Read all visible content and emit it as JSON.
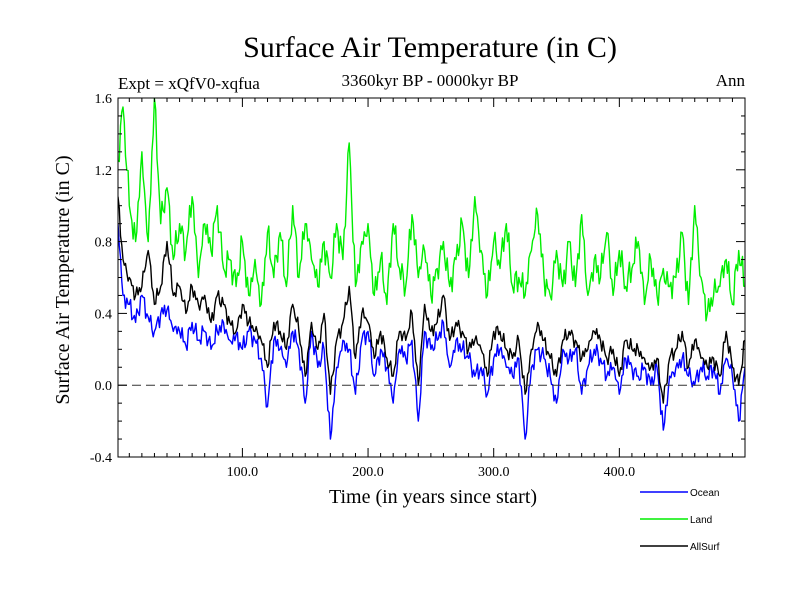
{
  "chart_data": {
    "type": "line",
    "title": "Surface Air Temperature (in C)",
    "subtitle": "3360kyr BP - 0000kyr BP",
    "experiment": "Expt = xQfV0-xqfua",
    "season": "Ann",
    "xlabel": "Time (in years since start)",
    "ylabel": "Surface Air Temperature (in C)",
    "xlim": [
      1,
      500
    ],
    "ylim": [
      -0.4,
      1.6
    ],
    "xticks": [
      100,
      200,
      300,
      400
    ],
    "xtick_labels": [
      "100.0",
      "200.0",
      "300.0",
      "400.0"
    ],
    "yticks": [
      -0.4,
      0.0,
      0.4,
      0.8,
      1.2,
      1.6
    ],
    "ytick_labels": [
      "-0.4",
      "0.0",
      "0.4",
      "0.8",
      "1.2",
      "1.6"
    ],
    "zero_line": 0.0,
    "legend_position": "bottom-right",
    "series": [
      {
        "name": "Ocean",
        "color": "#0000ff",
        "x": [
          1,
          5,
          10,
          15,
          20,
          25,
          30,
          35,
          40,
          45,
          50,
          55,
          60,
          65,
          70,
          75,
          80,
          85,
          90,
          95,
          100,
          105,
          110,
          115,
          120,
          125,
          130,
          135,
          140,
          145,
          150,
          155,
          160,
          165,
          170,
          175,
          180,
          185,
          190,
          195,
          200,
          205,
          210,
          215,
          220,
          225,
          230,
          235,
          240,
          245,
          250,
          255,
          260,
          265,
          270,
          275,
          280,
          285,
          290,
          295,
          300,
          305,
          310,
          315,
          320,
          325,
          330,
          335,
          340,
          345,
          350,
          355,
          360,
          365,
          370,
          375,
          380,
          385,
          390,
          395,
          400,
          405,
          410,
          415,
          420,
          425,
          430,
          435,
          440,
          445,
          450,
          455,
          460,
          465,
          470,
          475,
          480,
          485,
          490,
          495,
          500
        ],
        "values": [
          0.9,
          0.5,
          0.45,
          0.35,
          0.5,
          0.38,
          0.3,
          0.4,
          0.42,
          0.3,
          0.3,
          0.22,
          0.35,
          0.25,
          0.3,
          0.2,
          0.3,
          0.35,
          0.25,
          0.28,
          0.2,
          0.3,
          0.25,
          0.15,
          -0.12,
          0.25,
          0.2,
          0.1,
          0.3,
          0.2,
          -0.1,
          0.3,
          0.1,
          0.2,
          -0.3,
          0.1,
          0.25,
          0.2,
          -0.05,
          0.25,
          0.3,
          0.05,
          0.2,
          0.1,
          -0.1,
          0.2,
          0.15,
          0.25,
          -0.2,
          0.3,
          0.2,
          0.25,
          0.35,
          0.1,
          0.25,
          0.2,
          0.15,
          0.05,
          0.1,
          -0.05,
          0.15,
          0.2,
          0.1,
          0.05,
          0.15,
          -0.3,
          0.1,
          0.2,
          0.15,
          0.05,
          -0.1,
          0.2,
          0.15,
          0.2,
          -0.05,
          0.1,
          0.2,
          0.15,
          0.05,
          0.1,
          -0.05,
          0.15,
          0.1,
          0.05,
          0.1,
          0.0,
          0.1,
          -0.25,
          0.05,
          0.1,
          0.15,
          0.05,
          0.0,
          0.1,
          0.05,
          0.1,
          -0.05,
          0.15,
          0.05,
          -0.2,
          0.1
        ]
      },
      {
        "name": "Land",
        "color": "#00ee00",
        "x": [
          1,
          5,
          10,
          15,
          20,
          25,
          30,
          35,
          40,
          45,
          50,
          55,
          60,
          65,
          70,
          75,
          80,
          85,
          90,
          95,
          100,
          105,
          110,
          115,
          120,
          125,
          130,
          135,
          140,
          145,
          150,
          155,
          160,
          165,
          170,
          175,
          180,
          185,
          190,
          195,
          200,
          205,
          210,
          215,
          220,
          225,
          230,
          235,
          240,
          245,
          250,
          255,
          260,
          265,
          270,
          275,
          280,
          285,
          290,
          295,
          300,
          305,
          310,
          315,
          320,
          325,
          330,
          335,
          340,
          345,
          350,
          355,
          360,
          365,
          370,
          375,
          380,
          385,
          390,
          395,
          400,
          405,
          410,
          415,
          420,
          425,
          430,
          435,
          440,
          445,
          450,
          455,
          460,
          465,
          470,
          475,
          480,
          485,
          490,
          495,
          500
        ],
        "values": [
          1.25,
          1.55,
          1.0,
          0.8,
          1.3,
          0.8,
          1.6,
          0.9,
          1.1,
          0.7,
          0.9,
          0.75,
          1.05,
          0.6,
          0.9,
          0.75,
          1.0,
          0.65,
          0.7,
          0.55,
          0.8,
          0.5,
          0.7,
          0.45,
          0.85,
          0.6,
          0.85,
          0.55,
          1.0,
          0.6,
          0.9,
          0.7,
          0.55,
          0.8,
          0.6,
          0.9,
          0.7,
          1.35,
          0.55,
          0.8,
          0.9,
          0.5,
          0.7,
          0.45,
          0.9,
          0.65,
          0.55,
          0.95,
          0.6,
          0.75,
          0.5,
          0.65,
          0.8,
          0.55,
          0.7,
          0.9,
          0.6,
          1.05,
          0.75,
          0.5,
          0.8,
          0.65,
          0.9,
          0.55,
          0.6,
          0.5,
          0.75,
          0.95,
          0.6,
          0.5,
          0.75,
          0.55,
          0.8,
          0.55,
          0.95,
          0.5,
          0.7,
          0.6,
          0.85,
          0.5,
          0.75,
          0.55,
          0.65,
          0.8,
          0.45,
          0.7,
          0.5,
          0.65,
          0.55,
          0.6,
          0.85,
          0.45,
          1.0,
          0.6,
          0.4,
          0.5,
          0.55,
          0.7,
          0.45,
          0.75,
          0.55
        ]
      },
      {
        "name": "AllSurf",
        "color": "#000000",
        "x": [
          1,
          5,
          10,
          15,
          20,
          25,
          30,
          35,
          40,
          45,
          50,
          55,
          60,
          65,
          70,
          75,
          80,
          85,
          90,
          95,
          100,
          105,
          110,
          115,
          120,
          125,
          130,
          135,
          140,
          145,
          150,
          155,
          160,
          165,
          170,
          175,
          180,
          185,
          190,
          195,
          200,
          205,
          210,
          215,
          220,
          225,
          230,
          235,
          240,
          245,
          250,
          255,
          260,
          265,
          270,
          275,
          280,
          285,
          290,
          295,
          300,
          305,
          310,
          315,
          320,
          325,
          330,
          335,
          340,
          345,
          350,
          355,
          360,
          365,
          370,
          375,
          380,
          385,
          390,
          395,
          400,
          405,
          410,
          415,
          420,
          425,
          430,
          435,
          440,
          445,
          450,
          455,
          460,
          465,
          470,
          475,
          480,
          485,
          490,
          495,
          500
        ],
        "values": [
          1.05,
          0.7,
          0.6,
          0.5,
          0.55,
          0.75,
          0.45,
          0.55,
          0.8,
          0.5,
          0.55,
          0.4,
          0.55,
          0.45,
          0.5,
          0.35,
          0.5,
          0.45,
          0.35,
          0.3,
          0.45,
          0.35,
          0.3,
          0.25,
          0.1,
          0.35,
          0.3,
          0.2,
          0.45,
          0.3,
          0.05,
          0.35,
          0.2,
          0.4,
          -0.05,
          0.25,
          0.35,
          0.55,
          0.15,
          0.4,
          0.35,
          0.15,
          0.3,
          0.15,
          0.05,
          0.3,
          0.25,
          0.4,
          0.0,
          0.45,
          0.3,
          0.35,
          0.5,
          0.25,
          0.35,
          0.3,
          0.2,
          0.25,
          0.2,
          0.05,
          0.3,
          0.3,
          0.2,
          0.15,
          0.25,
          -0.05,
          0.2,
          0.35,
          0.25,
          0.15,
          0.05,
          0.25,
          0.3,
          0.25,
          0.15,
          0.2,
          0.3,
          0.25,
          0.15,
          0.2,
          0.05,
          0.25,
          0.2,
          0.2,
          0.15,
          0.1,
          0.15,
          -0.1,
          0.15,
          0.2,
          0.3,
          0.1,
          0.25,
          0.15,
          0.1,
          0.15,
          0.05,
          0.3,
          0.1,
          0.0,
          0.25
        ]
      }
    ]
  }
}
